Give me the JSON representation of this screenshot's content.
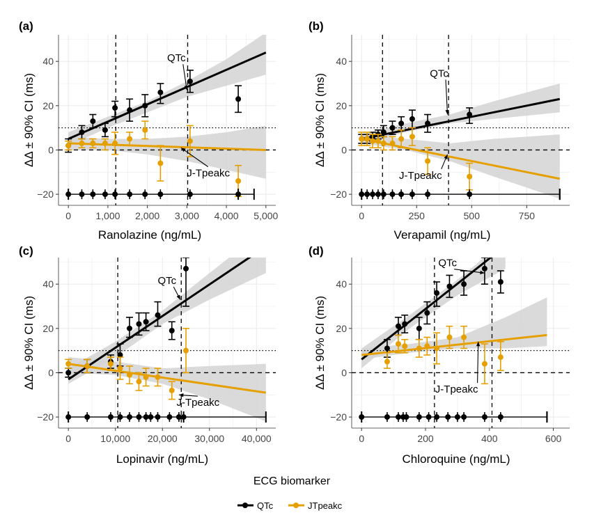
{
  "figure": {
    "legend": {
      "title": "ECG biomarker",
      "items": [
        {
          "label": "QTc",
          "color": "#000000"
        },
        {
          "label": "JTpeakc",
          "color": "#E5A000"
        }
      ]
    },
    "ci_band_color": "#D3D3D3",
    "gridline_color": "#EBEBEB"
  },
  "chart_data": [
    {
      "panel_label": "(a)",
      "type": "scatter",
      "xlabel": "Ranolazine (ng/mL)",
      "ylabel": "ΔΔ ± 90% CI (ms)",
      "xlim": [
        0,
        5000
      ],
      "ylim": [
        -25,
        52
      ],
      "x_ticks": [
        0,
        1000,
        2000,
        3000,
        4000,
        5000
      ],
      "x_tick_labels": [
        "0",
        "1,000",
        "2,000",
        "3,000",
        "4,000",
        "5,000"
      ],
      "y_ticks": [
        -20,
        0,
        20,
        40
      ],
      "y_tick_labels": [
        "−20",
        "0",
        "20",
        "40"
      ],
      "vlines": [
        1200,
        3020
      ],
      "hline_dotted": 10,
      "hline_dashed": 0,
      "series": [
        {
          "name": "QTc",
          "color": "#000000",
          "points": [
            [
              0,
              2,
              -1,
              5
            ],
            [
              340,
              8,
              5,
              11
            ],
            [
              620,
              13,
              10,
              16
            ],
            [
              930,
              9,
              6,
              12
            ],
            [
              1180,
              19,
              15,
              22
            ],
            [
              1550,
              18,
              13,
              23
            ],
            [
              1940,
              20,
              15,
              25
            ],
            [
              2330,
              26,
              21,
              30
            ],
            [
              3080,
              31,
              26,
              36
            ],
            [
              4300,
              23,
              17,
              29
            ]
          ],
          "fit": {
            "x0": 0,
            "x1": 5000,
            "y0": 5,
            "y1": 44
          },
          "ci": [
            [
              0,
              2,
              8
            ],
            [
              1000,
              10,
              15
            ],
            [
              2000,
              17,
              22
            ],
            [
              3000,
              24,
              31
            ],
            [
              4000,
              29,
              41
            ],
            [
              5000,
              34,
              53
            ]
          ]
        },
        {
          "name": "JTpeakc",
          "color": "#E5A000",
          "points": [
            [
              0,
              2,
              0,
              4
            ],
            [
              340,
              3,
              1,
              5
            ],
            [
              620,
              3,
              1,
              5
            ],
            [
              930,
              3,
              0,
              5
            ],
            [
              1180,
              3,
              -2,
              8
            ],
            [
              1550,
              5,
              2,
              8
            ],
            [
              1940,
              9,
              5,
              13
            ],
            [
              2330,
              -6,
              -14,
              2
            ],
            [
              3080,
              4,
              -3,
              11
            ],
            [
              4300,
              -14,
              -21,
              -7
            ]
          ],
          "fit": {
            "x0": 0,
            "x1": 5000,
            "y0": 3,
            "y1": 0
          },
          "ci": [
            [
              0,
              0,
              6
            ],
            [
              1000,
              0,
              5
            ],
            [
              2000,
              -2,
              5
            ],
            [
              3000,
              -5,
              6
            ],
            [
              4000,
              -9,
              8
            ],
            [
              5000,
              -13,
              11
            ]
          ]
        }
      ],
      "rug": {
        "x": [
          0,
          340,
          620,
          930,
          1180,
          1550,
          1940,
          2330,
          3080,
          4300
        ],
        "ends": [
          0,
          4300
        ],
        "line_x": [
          0,
          4700
        ]
      },
      "annotations": [
        {
          "text": "QTc",
          "tx": 2500,
          "ty": 40,
          "ax": 3000,
          "ay": 27
        },
        {
          "text": "J-Tpeakc",
          "tx": 3000,
          "ty": -12,
          "ax": 2850,
          "ay": 1
        }
      ]
    },
    {
      "panel_label": "(b)",
      "type": "scatter",
      "xlabel": "Verapamil (ng/mL)",
      "ylabel": "ΔΔ ± 90% CI (ms)",
      "xlim": [
        0,
        900
      ],
      "ylim": [
        -25,
        52
      ],
      "x_ticks": [
        0,
        250,
        500,
        750
      ],
      "x_tick_labels": [
        "0",
        "250",
        "500",
        "750"
      ],
      "y_ticks": [
        -20,
        0,
        20,
        40
      ],
      "y_tick_labels": [
        "−20",
        "0",
        "20",
        "40"
      ],
      "vlines": [
        95,
        395
      ],
      "hline_dotted": 10,
      "hline_dashed": 0,
      "series": [
        {
          "name": "QTc",
          "color": "#000000",
          "points": [
            [
              0,
              5,
              3,
              7
            ],
            [
              25,
              5,
              3,
              7
            ],
            [
              50,
              6,
              4,
              8
            ],
            [
              75,
              7,
              5,
              9
            ],
            [
              100,
              8,
              6,
              11
            ],
            [
              140,
              10,
              7,
              13
            ],
            [
              180,
              12,
              9,
              15
            ],
            [
              230,
              14,
              10,
              18
            ],
            [
              300,
              12,
              8,
              16
            ],
            [
              490,
              16,
              12,
              19
            ]
          ],
          "fit": {
            "x0": 0,
            "x1": 900,
            "y0": 5,
            "y1": 23
          },
          "ci": [
            [
              0,
              3,
              7
            ],
            [
              200,
              8,
              12
            ],
            [
              400,
              12,
              16
            ],
            [
              600,
              14,
              22
            ],
            [
              900,
              17,
              30
            ]
          ]
        },
        {
          "name": "JTpeakc",
          "color": "#E5A000",
          "points": [
            [
              0,
              5,
              2,
              8
            ],
            [
              25,
              5,
              2,
              8
            ],
            [
              50,
              4,
              1,
              7
            ],
            [
              75,
              4,
              1,
              7
            ],
            [
              100,
              3,
              0,
              6
            ],
            [
              140,
              3,
              0,
              6
            ],
            [
              180,
              5,
              1,
              9
            ],
            [
              230,
              6,
              2,
              10
            ],
            [
              300,
              -5,
              -11,
              1
            ],
            [
              490,
              -12,
              -18,
              -6
            ]
          ],
          "fit": {
            "x0": 0,
            "x1": 900,
            "y0": 5,
            "y1": -13
          },
          "ci": [
            [
              0,
              3,
              7
            ],
            [
              200,
              0,
              5
            ],
            [
              400,
              -5,
              3
            ],
            [
              600,
              -12,
              5
            ],
            [
              900,
              -22,
              7
            ]
          ]
        }
      ],
      "rug": {
        "x": [
          0,
          25,
          50,
          75,
          100,
          140,
          180,
          230,
          300,
          490
        ],
        "ends": [
          0,
          900
        ],
        "line_x": [
          0,
          900
        ]
      },
      "annotations": [
        {
          "text": "QTc",
          "tx": 310,
          "ty": 33,
          "ax": 390,
          "ay": 16
        },
        {
          "text": "J-Tpeakc",
          "tx": 170,
          "ty": -13,
          "ax": 390,
          "ay": -2
        }
      ]
    },
    {
      "panel_label": "(c)",
      "type": "scatter",
      "xlabel": "Lopinavir (ng/mL)",
      "ylabel": "ΔΔ ± 90% CI (ms)",
      "xlim": [
        0,
        42000
      ],
      "ylim": [
        -25,
        52
      ],
      "x_ticks": [
        0,
        10000,
        20000,
        30000,
        40000
      ],
      "x_tick_labels": [
        "0",
        "10,000",
        "20,000",
        "30,000",
        "40,000"
      ],
      "y_ticks": [
        -20,
        0,
        20,
        40
      ],
      "y_tick_labels": [
        "−20",
        "0",
        "20",
        "40"
      ],
      "vlines": [
        10500,
        24000
      ],
      "hline_dotted": 10,
      "hline_dashed": 0,
      "series": [
        {
          "name": "QTc",
          "color": "#000000",
          "points": [
            [
              0,
              0,
              -2,
              2
            ],
            [
              4000,
              3,
              0,
              6
            ],
            [
              9000,
              5,
              2,
              8
            ],
            [
              11000,
              8,
              3,
              13
            ],
            [
              13000,
              20,
              16,
              25
            ],
            [
              15000,
              22,
              17,
              27
            ],
            [
              16500,
              23,
              19,
              27
            ],
            [
              19000,
              26,
              21,
              32
            ],
            [
              22000,
              19,
              15,
              23
            ],
            [
              25000,
              47,
              30,
              52
            ]
          ],
          "fit": {
            "x0": 0,
            "x1": 42000,
            "y0": -3,
            "y1": 57
          },
          "ci": [
            [
              0,
              -5,
              2
            ],
            [
              10000,
              7,
              14
            ],
            [
              20000,
              22,
              28
            ],
            [
              30000,
              33,
              45
            ],
            [
              42000,
              45,
              65
            ]
          ]
        },
        {
          "name": "JTpeakc",
          "color": "#E5A000",
          "points": [
            [
              0,
              4,
              2,
              6
            ],
            [
              4000,
              3,
              0,
              6
            ],
            [
              9000,
              4,
              1,
              7
            ],
            [
              11000,
              2,
              -3,
              7
            ],
            [
              13000,
              -1,
              -5,
              3
            ],
            [
              15000,
              -4,
              -8,
              0
            ],
            [
              16500,
              -2,
              -6,
              2
            ],
            [
              19000,
              -2,
              -6,
              2
            ],
            [
              22000,
              -8,
              -12,
              -4
            ],
            [
              25000,
              10,
              0,
              20
            ]
          ],
          "fit": {
            "x0": 0,
            "x1": 42000,
            "y0": 4,
            "y1": -9
          },
          "ci": [
            [
              0,
              0,
              7
            ],
            [
              10000,
              -1,
              5
            ],
            [
              20000,
              -5,
              2
            ],
            [
              30000,
              -12,
              3
            ],
            [
              42000,
              -22,
              4
            ]
          ]
        }
      ],
      "rug": {
        "x": [
          0,
          4000,
          9000,
          11000,
          13000,
          15000,
          16500,
          17500,
          19000,
          21500,
          23500,
          24500
        ],
        "ends": [
          0,
          24500
        ],
        "line_x": [
          0,
          42000
        ]
      },
      "annotations": [
        {
          "text": "QTc",
          "tx": 19000,
          "ty": 40,
          "ax": 23800,
          "ay": 33
        },
        {
          "text": "J-Tpeakc",
          "tx": 23000,
          "ty": -15,
          "ax": 23500,
          "ay": -10
        }
      ]
    },
    {
      "panel_label": "(d)",
      "type": "scatter",
      "xlabel": "Chloroquine (ng/mL)",
      "ylabel": "ΔΔ ± 90% CI (ms)",
      "xlim": [
        0,
        620
      ],
      "ylim": [
        -25,
        52
      ],
      "x_ticks": [
        0,
        200,
        400,
        600
      ],
      "x_tick_labels": [
        "0",
        "200",
        "400",
        "600"
      ],
      "y_ticks": [
        -20,
        0,
        20,
        40
      ],
      "y_tick_labels": [
        "−20",
        "0",
        "20",
        "40"
      ],
      "vlines": [
        228,
        408
      ],
      "hline_dotted": 10,
      "hline_dashed": 0,
      "series": [
        {
          "name": "QTc",
          "color": "#000000",
          "points": [
            [
              80,
              11,
              7,
              15
            ],
            [
              115,
              21,
              17,
              25
            ],
            [
              135,
              22,
              18,
              26
            ],
            [
              180,
              20,
              15,
              25
            ],
            [
              205,
              27,
              22,
              32
            ],
            [
              235,
              36,
              30,
              41
            ],
            [
              275,
              39,
              34,
              44
            ],
            [
              320,
              40,
              35,
              46
            ],
            [
              385,
              47,
              40,
              52
            ],
            [
              435,
              41,
              36,
              46
            ]
          ],
          "fit": {
            "x0": 0,
            "x1": 430,
            "y0": 6,
            "y1": 55
          },
          "ci": [
            [
              0,
              2,
              11
            ],
            [
              150,
              20,
              26
            ],
            [
              300,
              35,
              42
            ],
            [
              450,
              47,
              60
            ]
          ]
        },
        {
          "name": "JTpeakc",
          "color": "#E5A000",
          "points": [
            [
              80,
              5,
              2,
              9
            ],
            [
              115,
              13,
              9,
              17
            ],
            [
              135,
              12,
              9,
              15
            ],
            [
              180,
              11,
              7,
              15
            ],
            [
              205,
              12,
              8,
              16
            ],
            [
              235,
              11,
              4,
              18
            ],
            [
              275,
              16,
              11,
              21
            ],
            [
              320,
              16,
              11,
              21
            ],
            [
              385,
              4,
              -5,
              13
            ],
            [
              435,
              7,
              1,
              14
            ]
          ],
          "fit": {
            "x0": 0,
            "x1": 580,
            "y0": 8,
            "y1": 17
          },
          "ci": [
            [
              0,
              6,
              11
            ],
            [
              150,
              9,
              13
            ],
            [
              300,
              11,
              16
            ],
            [
              450,
              11,
              25
            ],
            [
              580,
              12,
              34
            ]
          ]
        }
      ],
      "rug": {
        "x": [
          0,
          80,
          115,
          130,
          140,
          180,
          210,
          235,
          270,
          300,
          320,
          385,
          435
        ],
        "ends": [
          0,
          580
        ],
        "line_x": [
          0,
          580
        ]
      },
      "annotations": [
        {
          "text": "QTc",
          "tx": 240,
          "ty": 48,
          "ax": 385,
          "ay": 45
        },
        {
          "text": "J-Tpeakc",
          "tx": 230,
          "ty": -9,
          "ax": 365,
          "ay": 14
        }
      ]
    }
  ]
}
